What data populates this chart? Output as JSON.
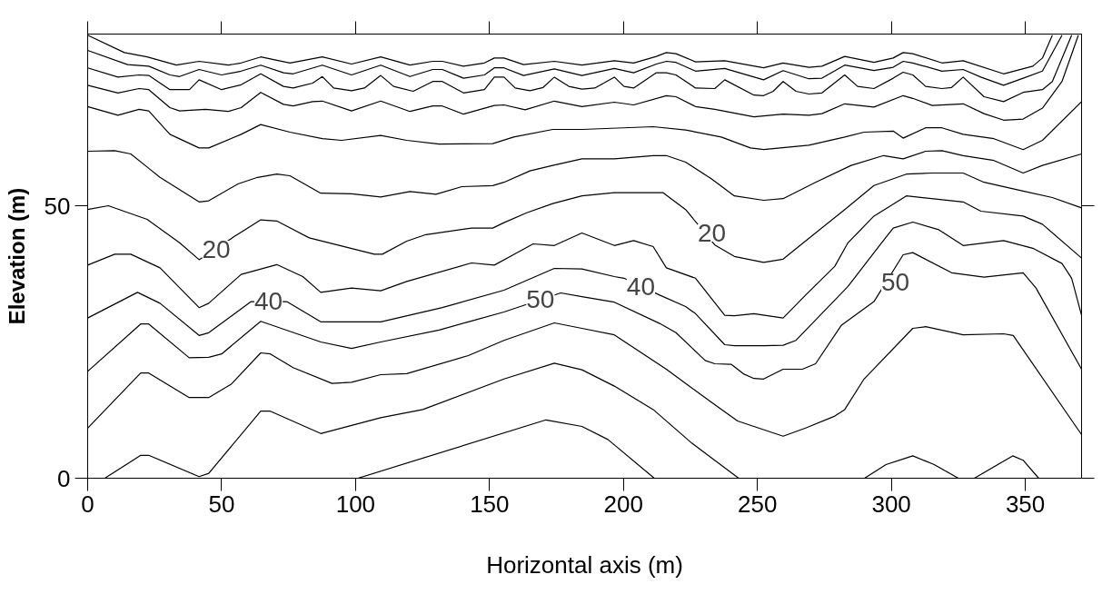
{
  "chart_data": {
    "type": "line",
    "xlabel": "Horizontal axis (m)",
    "ylabel": "Elevation (m)",
    "xlim": [
      0,
      371
    ],
    "ylim": [
      0,
      81.5
    ],
    "xticks": [
      0,
      50,
      100,
      150,
      200,
      250,
      300,
      350
    ],
    "yticks": [
      0,
      50
    ],
    "grid": false,
    "annotations": [
      {
        "text": "20",
        "x": 48,
        "y": 42
      },
      {
        "text": "20",
        "x": 233,
        "y": 45
      },
      {
        "text": "40",
        "x": 67.5,
        "y": 32.5
      },
      {
        "text": "50",
        "x": 169,
        "y": 32.9
      },
      {
        "text": "40",
        "x": 206.5,
        "y": 35.1
      },
      {
        "text": "50",
        "x": 301.5,
        "y": 36
      }
    ],
    "series": [
      {
        "color": "#000000",
        "x": [
          0,
          13.7,
          22.2,
          33.1,
          41.6,
          52.5,
          57.3,
          64.6,
          75.5,
          87.6,
          98.5,
          109.4,
          120.3,
          128.8,
          132.4,
          140.3,
          148.1,
          151.8,
          155.4,
          162.7,
          174.2,
          184.5,
          196.6,
          203.8,
          212.3,
          216,
          219.6,
          226.9,
          237.8,
          252.3,
          259.6,
          269.2,
          274.1,
          282.6,
          293.5,
          300.7,
          304.4,
          308,
          318.9,
          326.8,
          341.9,
          352.8,
          356.4,
          360.1
        ],
        "values": [
          81.3,
          78.1,
          77.3,
          75.8,
          76.5,
          75.8,
          76.2,
          77.3,
          76.2,
          77.3,
          76,
          77.3,
          75.8,
          76.5,
          76.5,
          75.6,
          76.2,
          77.1,
          77.1,
          75.9,
          76.5,
          75.8,
          76.6,
          76.2,
          77.4,
          78.1,
          77.9,
          76.4,
          76.6,
          75.3,
          76.2,
          75.4,
          75.6,
          77.4,
          76.3,
          77.1,
          78.1,
          77.9,
          76.2,
          76.6,
          74.2,
          75.6,
          77.1,
          81.3
        ]
      },
      {
        "color": "#000000",
        "x": [
          0,
          14.9,
          22.8,
          30.7,
          34.3,
          41.6,
          50,
          57.3,
          64.6,
          73.1,
          76.7,
          87.6,
          98.5,
          109.4,
          120.3,
          128.8,
          132.4,
          140.3,
          148.1,
          151.8,
          155.4,
          162.7,
          174.2,
          184.5,
          196.6,
          203.8,
          212.3,
          216,
          219.6,
          226.9,
          237.8,
          252.3,
          259.6,
          269.2,
          274.1,
          282.6,
          293.5,
          300.7,
          304.4,
          308,
          318.9,
          326.8,
          333.4,
          341.9,
          349.2,
          356.4,
          363.7
        ],
        "values": [
          78.5,
          75.9,
          75.6,
          74,
          73.7,
          75,
          74,
          74.7,
          75.8,
          74.4,
          74.2,
          75.8,
          74,
          75.8,
          73.7,
          75,
          75,
          73.4,
          74,
          75.3,
          75.3,
          73.9,
          75.1,
          73.9,
          75.2,
          74.4,
          76,
          76.5,
          76.3,
          74.7,
          75.2,
          73.1,
          74.8,
          73.3,
          73.4,
          75.8,
          74.8,
          75.4,
          76.5,
          76.2,
          74.7,
          75,
          73.6,
          72.1,
          73.4,
          74.7,
          81.3
        ]
      },
      {
        "color": "#000000",
        "x": [
          0,
          11.3,
          19.2,
          22.8,
          30.7,
          38,
          41.6,
          50,
          57.3,
          64.6,
          73.1,
          76.7,
          84,
          87.6,
          91.8,
          98.5,
          103.3,
          109.4,
          114.2,
          121.5,
          128.8,
          132.4,
          140.3,
          148.1,
          151.8,
          155.4,
          159.6,
          165.1,
          170,
          174.2,
          179.6,
          184.5,
          189.3,
          196.6,
          200.2,
          203.8,
          212.3,
          216,
          219.6,
          226.9,
          234.1,
          237.8,
          248.7,
          252.3,
          255.9,
          259.6,
          264.4,
          269.2,
          274.1,
          282.6,
          287.4,
          293.5,
          300.7,
          304.4,
          308,
          312.8,
          318.9,
          322.5,
          326.8,
          334.6,
          341.9,
          349.2,
          356.4,
          360.1,
          367.3
        ],
        "values": [
          75.3,
          73.6,
          74,
          73.9,
          71.3,
          71.3,
          73.1,
          71.3,
          72.2,
          74.2,
          71.9,
          71.6,
          72.5,
          73.7,
          71.6,
          71.1,
          71.6,
          73.9,
          71.9,
          71,
          72.8,
          72.8,
          70.7,
          71.3,
          73.6,
          73.6,
          71.6,
          71.1,
          71.7,
          73.6,
          71.9,
          71.4,
          71.6,
          73.6,
          71.9,
          71.6,
          74.4,
          74.4,
          74,
          71.6,
          71.5,
          73.1,
          70.3,
          70.2,
          71,
          72.8,
          71,
          70.5,
          70.7,
          74,
          71.9,
          71.5,
          73.4,
          74.5,
          74,
          71.9,
          71.5,
          71.7,
          73.6,
          70,
          69.1,
          70.8,
          71.3,
          72.8,
          81.3
        ]
      },
      {
        "color": "#000000",
        "x": [
          0,
          11.3,
          19.2,
          22.8,
          30.7,
          34.3,
          44,
          52.5,
          57.3,
          64.6,
          73.1,
          76.7,
          84,
          87.6,
          98.5,
          109.4,
          120.3,
          128.8,
          132.4,
          140.3,
          151.8,
          155.4,
          163.3,
          174.2,
          184.5,
          196.6,
          203.8,
          216,
          219.6,
          226.9,
          234.1,
          248.7,
          259.6,
          269.2,
          274.1,
          282.6,
          293.5,
          304.4,
          308,
          315.3,
          326.8,
          334.6,
          341.9,
          349.2,
          356.4,
          363.7,
          369.8
        ],
        "values": [
          72.1,
          70.7,
          71.5,
          71.3,
          68,
          67.4,
          67.7,
          67.3,
          68,
          70.8,
          68.6,
          68.3,
          69.1,
          69.2,
          67.4,
          69.2,
          67.3,
          68.3,
          68.3,
          66.8,
          68.4,
          68.5,
          67.6,
          69.2,
          68.2,
          69,
          68.5,
          70.2,
          70,
          68.2,
          67.7,
          66.3,
          66.8,
          66.6,
          66.9,
          68.7,
          68.1,
          70.2,
          69.7,
          68.4,
          68.7,
          66.9,
          65.7,
          65.9,
          67.9,
          72.8,
          81.3
        ]
      },
      {
        "color": "#000000",
        "x": [
          0,
          11.3,
          19.2,
          22.8,
          30.7,
          41.6,
          45.2,
          57.3,
          64.6,
          75.5,
          87.6,
          94.8,
          109.4,
          119.1,
          131.2,
          151.2,
          159,
          173.6,
          184.5,
          211.1,
          223.2,
          236.5,
          247.4,
          252.3,
          269.2,
          282.6,
          289.8,
          300.7,
          304.4,
          312.8,
          318.9,
          326.8,
          338.3,
          349.2,
          356.4,
          371
        ],
        "values": [
          68.2,
          66.6,
          67.7,
          67.4,
          63.1,
          60.6,
          60.6,
          63.1,
          64.9,
          63.5,
          62.3,
          62,
          62.9,
          62,
          61.3,
          61.4,
          62.6,
          64,
          64,
          64.5,
          63.9,
          62.6,
          60.6,
          60.3,
          61.1,
          62.6,
          63.5,
          63.7,
          62.4,
          64.3,
          64.3,
          63.1,
          62.3,
          60.3,
          62,
          69.1
        ]
      },
      {
        "color": "#000000",
        "x": [
          0,
          10.1,
          16.1,
          22.2,
          27,
          41.6,
          45.2,
          56.1,
          63.4,
          70.6,
          75.5,
          87,
          98.5,
          109.4,
          120.3,
          130,
          139.7,
          151.2,
          155.4,
          165.1,
          173.6,
          184.5,
          196.6,
          211.1,
          216,
          223.2,
          232.9,
          241.4,
          252.3,
          259.6,
          271.7,
          285,
          297.1,
          304.4,
          312.8,
          318.9,
          326.8,
          338.3,
          349.2,
          356.4,
          371
        ],
        "values": [
          60,
          60.1,
          59.5,
          57.1,
          55.2,
          50.7,
          50.9,
          54,
          55.2,
          55.8,
          55.5,
          52.3,
          52.2,
          51.6,
          52.6,
          52.1,
          53.5,
          53.7,
          54.3,
          56.4,
          57.4,
          58.6,
          58.6,
          59.2,
          59.2,
          58,
          54.9,
          51.8,
          51,
          51.3,
          54.3,
          57.4,
          59.2,
          58.6,
          60,
          60.1,
          59.2,
          58.3,
          56,
          57.4,
          59.5
        ]
      },
      {
        "color": "#000000",
        "x": [
          0,
          7.7,
          22.2,
          34.3,
          41.6,
          54.9,
          64.6,
          70.6,
          82.7,
          107,
          110,
          119.1,
          126.3,
          143.3,
          151.2,
          155.4,
          163.9,
          173.6,
          184.5,
          196.6,
          214.7,
          223.2,
          234.1,
          241.4,
          252.3,
          259.6,
          271.7,
          282.6,
          293.5,
          305.6,
          315.3,
          326.8,
          334.6,
          349.2,
          360.1,
          371
        ],
        "values": [
          49.3,
          50,
          47.5,
          43.2,
          40.1,
          44.4,
          47.4,
          47.2,
          44.1,
          41.1,
          41.1,
          43.5,
          44.7,
          45.9,
          45.9,
          46.9,
          48.7,
          50.4,
          51.8,
          52.4,
          52.4,
          49.3,
          42.8,
          40.7,
          39.6,
          40.2,
          45,
          49.3,
          53.7,
          55.8,
          56,
          56,
          54.3,
          52.7,
          51.5,
          49.6
        ]
      },
      {
        "color": "#000000",
        "x": [
          0,
          10.1,
          16.1,
          27,
          41.6,
          45.2,
          57.3,
          70.6,
          80.3,
          87,
          98.5,
          109.4,
          119.1,
          143.3,
          151.8,
          157.8,
          166.3,
          174.2,
          184.5,
          196.6,
          203.8,
          211.1,
          216,
          226.9,
          237.8,
          241.4,
          248.7,
          259.6,
          268,
          278.9,
          283.8,
          293.5,
          305.6,
          326.8,
          333.4,
          349.2,
          356.4,
          371
        ],
        "values": [
          39.1,
          41.1,
          41.1,
          38.6,
          31.3,
          32.1,
          37.4,
          39.2,
          37,
          34.1,
          34.9,
          34.4,
          36.1,
          39.5,
          39.1,
          40.7,
          43,
          42.7,
          45,
          42.7,
          43.6,
          42.5,
          38.6,
          36.7,
          29.9,
          29.8,
          30.2,
          29.4,
          33.6,
          38.9,
          43.2,
          48.1,
          51.8,
          50.7,
          49,
          48.1,
          46.6,
          40.4
        ]
      },
      {
        "color": "#000000",
        "x": [
          0,
          18.6,
          27,
          41.6,
          45.2,
          61,
          74.3,
          87,
          109.4,
          132.4,
          155.4,
          174.2,
          184.5,
          196.6,
          200.2,
          213.5,
          223.2,
          226.9,
          237.8,
          241.4,
          252.3,
          259.6,
          264.4,
          278.9,
          283.8,
          295.9,
          300.7,
          308,
          317.7,
          326.8,
          341.9,
          352.8,
          363.7,
          367.3,
          371
        ],
        "values": [
          29.4,
          34.1,
          32.1,
          26.2,
          26.7,
          32.4,
          32.4,
          28.7,
          28.7,
          31.3,
          34.5,
          38.5,
          38.4,
          37,
          36.7,
          33.6,
          31.5,
          30.2,
          24.5,
          24.3,
          24.3,
          24.4,
          25.3,
          32.7,
          35.2,
          42.9,
          45.9,
          47,
          45.6,
          42.7,
          43.6,
          42.2,
          39.4,
          36.7,
          29.9
        ]
      },
      {
        "color": "#000000",
        "x": [
          0,
          19.8,
          22.8,
          37.9,
          45.2,
          50,
          64.6,
          87,
          98.5,
          109.4,
          131.2,
          142.1,
          155.4,
          176.6,
          184.5,
          196.6,
          213.5,
          219.6,
          230.5,
          234.1,
          240.2,
          245,
          248.7,
          252.3,
          259.6,
          266.8,
          271.7,
          281.4,
          293.5,
          304.4,
          308,
          322.5,
          334.6,
          349.2,
          354,
          371
        ],
        "values": [
          19.6,
          28.3,
          28.3,
          22.1,
          22.2,
          22.8,
          28.8,
          25,
          23.8,
          25,
          27.2,
          28.7,
          30.5,
          34,
          33.3,
          32.3,
          28.4,
          26.7,
          21.6,
          21,
          20.9,
          19.1,
          18.3,
          18.2,
          20,
          20,
          21,
          28.1,
          32.4,
          41,
          41.4,
          37.7,
          36.9,
          37.7,
          34.9,
          20
        ]
      },
      {
        "color": "#000000",
        "x": [
          0,
          19.8,
          22.8,
          37.9,
          45.2,
          53.7,
          64.6,
          68.2,
          76.7,
          91.2,
          98.5,
          109.4,
          119.1,
          142.1,
          155.4,
          174.2,
          184.5,
          196.6,
          216,
          232.9,
          242.6,
          259.6,
          268,
          278.9,
          282.6,
          289.8,
          308,
          312.8,
          326.8,
          341.9,
          345.5,
          371
        ],
        "values": [
          9.2,
          19.3,
          19.3,
          14.8,
          14.8,
          17.3,
          23,
          22.8,
          20.3,
          17.4,
          17.6,
          19,
          19.2,
          22.5,
          25.3,
          28.5,
          27.5,
          26.3,
          20,
          13.9,
          10.5,
          7.7,
          9.2,
          11.4,
          12.6,
          18.2,
          27.5,
          27.8,
          26.3,
          26.5,
          26.2,
          8
        ]
      },
      {
        "color": "#000000",
        "x": [
          6.4,
          19.8,
          22.8,
          41.6,
          45.2,
          64.6,
          68.2,
          87,
          109.4,
          125.1,
          155.4,
          174.2,
          184.5,
          196.6,
          211.1,
          225.6,
          243
        ],
        "values": [
          0,
          4.2,
          4.2,
          0.3,
          0.9,
          12.3,
          12.3,
          8.2,
          11.1,
          12.6,
          18.2,
          21.1,
          19.9,
          16.9,
          12.6,
          6.4,
          0
        ]
      },
      {
        "color": "#000000",
        "x": [
          100.9,
          171.1,
          184.5,
          194.2,
          211.5
        ],
        "values": [
          0,
          10.7,
          9.5,
          7.1,
          0
        ]
      },
      {
        "color": "#000000",
        "x": [
          290,
          298,
          308,
          316,
          325
        ],
        "values": [
          0,
          2.5,
          4.1,
          2.5,
          0
        ]
      },
      {
        "color": "#000000",
        "x": [
          331,
          345.3,
          349.2,
          355
        ],
        "values": [
          0,
          4.1,
          3.3,
          0
        ]
      }
    ]
  }
}
